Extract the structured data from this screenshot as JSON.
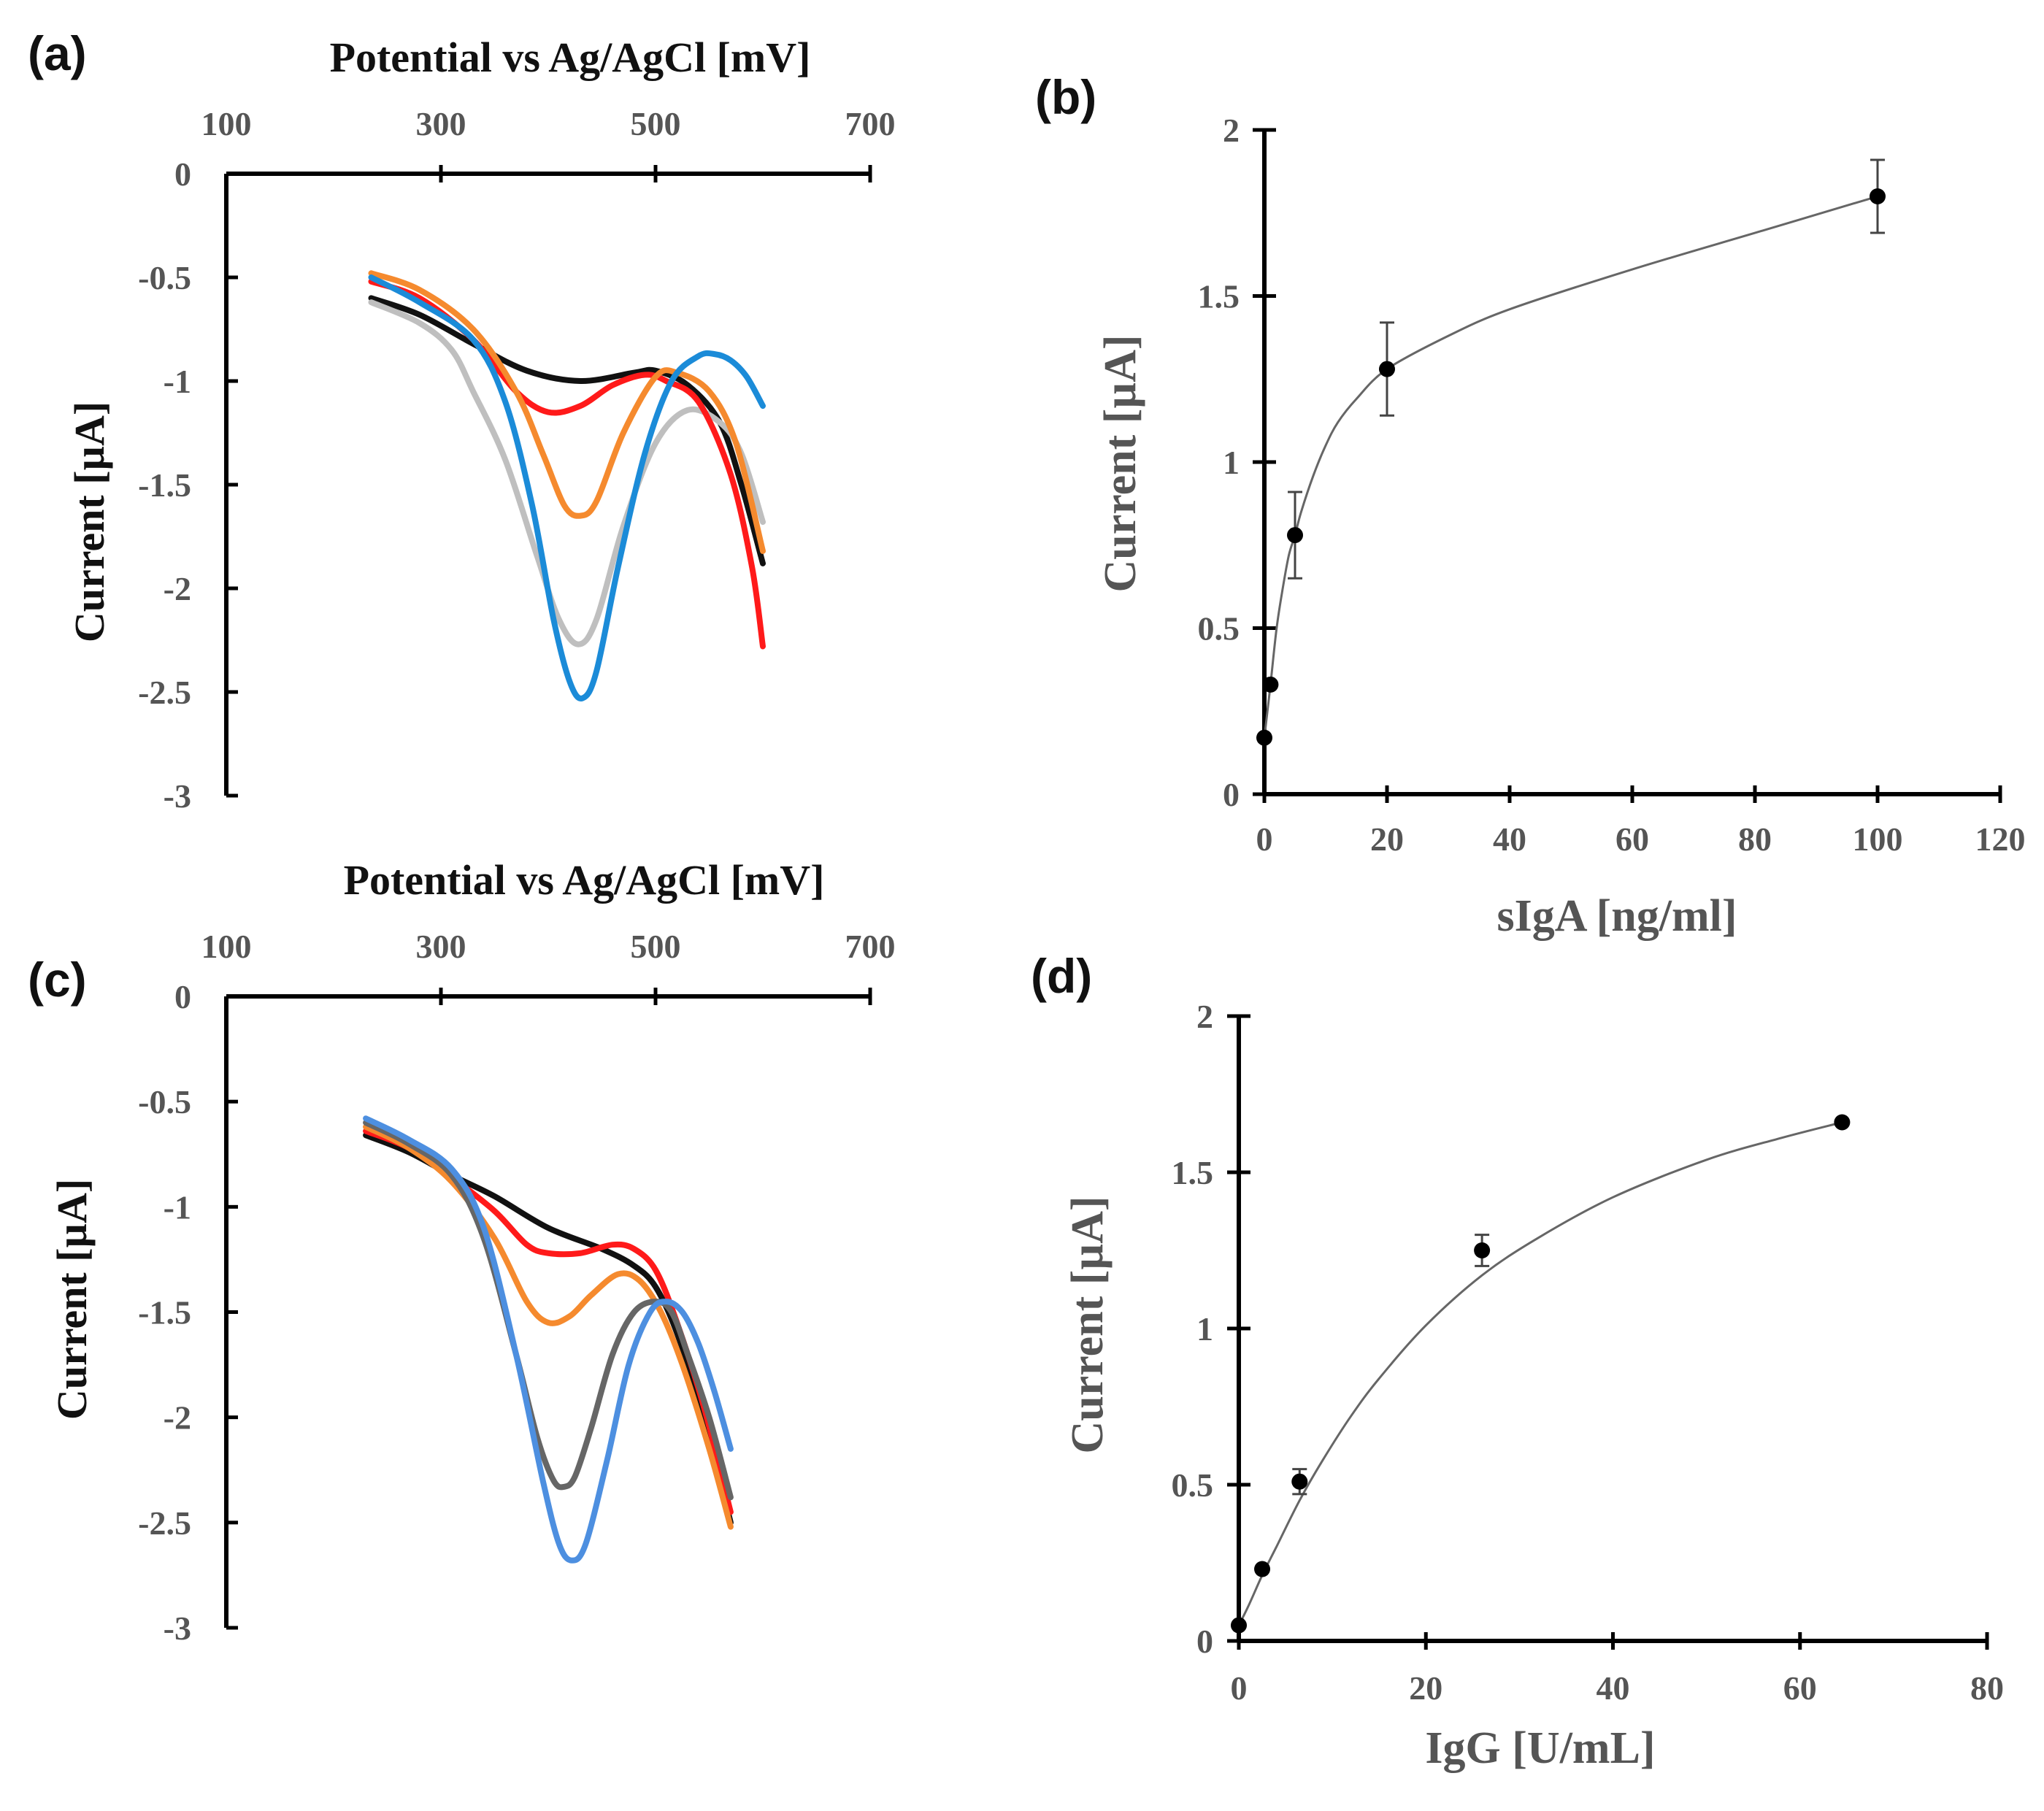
{
  "chart_data": [
    {
      "panel": "(a)",
      "type": "line",
      "title": "Potential vs Ag/AgCl [mV]",
      "xlabel": "Potential vs Ag/AgCl [mV]",
      "ylabel": "Current [µA]",
      "xlim": [
        100,
        700
      ],
      "ylim": [
        -3,
        0
      ],
      "x_ticks": [
        "100",
        "300",
        "500",
        "700"
      ],
      "y_ticks": [
        "0",
        "-0.5",
        "-1",
        "-1.5",
        "-2",
        "-2.5",
        "-3"
      ],
      "series": [
        {
          "name": "black",
          "color": "#111111",
          "x": [
            235,
            280,
            330,
            380,
            430,
            480,
            500,
            530,
            560,
            580,
            600
          ],
          "y": [
            -0.6,
            -0.68,
            -0.82,
            -0.95,
            -1.0,
            -0.96,
            -0.95,
            -1.02,
            -1.2,
            -1.5,
            -1.88
          ]
        },
        {
          "name": "gray",
          "color": "#bfbfbf",
          "x": [
            235,
            280,
            310,
            330,
            360,
            390,
            410,
            428,
            445,
            470,
            500,
            530,
            560,
            580,
            600
          ],
          "y": [
            -0.62,
            -0.72,
            -0.85,
            -1.05,
            -1.38,
            -1.85,
            -2.15,
            -2.27,
            -2.15,
            -1.7,
            -1.3,
            -1.14,
            -1.2,
            -1.35,
            -1.68
          ]
        },
        {
          "name": "red",
          "color": "#ff1a1a",
          "x": [
            235,
            280,
            330,
            370,
            400,
            430,
            460,
            490,
            510,
            540,
            570,
            590,
            600
          ],
          "y": [
            -0.52,
            -0.6,
            -0.8,
            -1.05,
            -1.15,
            -1.12,
            -1.02,
            -0.97,
            -1.0,
            -1.1,
            -1.45,
            -1.9,
            -2.28
          ]
        },
        {
          "name": "orange",
          "color": "#f58a2e",
          "x": [
            235,
            280,
            330,
            370,
            395,
            415,
            430,
            445,
            470,
            500,
            520,
            550,
            575,
            600
          ],
          "y": [
            -0.48,
            -0.56,
            -0.75,
            -1.05,
            -1.35,
            -1.6,
            -1.65,
            -1.58,
            -1.25,
            -0.98,
            -0.96,
            -1.05,
            -1.3,
            -1.82
          ]
        },
        {
          "name": "blue",
          "color": "#1b8bd8",
          "x": [
            235,
            280,
            330,
            360,
            385,
            405,
            420,
            432,
            445,
            465,
            490,
            515,
            540,
            555,
            570,
            585,
            600
          ],
          "y": [
            -0.5,
            -0.62,
            -0.8,
            -1.1,
            -1.6,
            -2.15,
            -2.45,
            -2.53,
            -2.4,
            -1.9,
            -1.35,
            -1.0,
            -0.88,
            -0.87,
            -0.9,
            -0.98,
            -1.12
          ]
        }
      ]
    },
    {
      "panel": "(b)",
      "type": "scatter",
      "xlabel": "sIgA [ng/ml]",
      "ylabel": "Current [µA]",
      "xlim": [
        0,
        120
      ],
      "ylim": [
        0,
        2
      ],
      "x_ticks": [
        "0",
        "20",
        "40",
        "60",
        "80",
        "100",
        "120"
      ],
      "y_ticks": [
        "0",
        "0.5",
        "1",
        "1.5",
        "2"
      ],
      "points": [
        {
          "x": 0,
          "y": 0.17,
          "err": 0
        },
        {
          "x": 1,
          "y": 0.33,
          "err": 0
        },
        {
          "x": 5,
          "y": 0.78,
          "err": 0.13
        },
        {
          "x": 20,
          "y": 1.28,
          "err": 0.14
        },
        {
          "x": 100,
          "y": 1.8,
          "err": 0.11
        }
      ],
      "fit": {
        "x": [
          0,
          0.5,
          1,
          2,
          3,
          4,
          5,
          6,
          8,
          10,
          12,
          15,
          20,
          30,
          40,
          60,
          80,
          100
        ],
        "y": [
          0.17,
          0.25,
          0.33,
          0.5,
          0.62,
          0.72,
          0.78,
          0.85,
          0.96,
          1.05,
          1.12,
          1.19,
          1.28,
          1.38,
          1.46,
          1.58,
          1.69,
          1.8
        ]
      }
    },
    {
      "panel": "(c)",
      "type": "line",
      "title": "Potential vs Ag/AgCl [mV]",
      "xlabel": "Potential vs Ag/AgCl [mV]",
      "ylabel": "Current [µA]",
      "xlim": [
        100,
        700
      ],
      "ylim": [
        -3,
        0
      ],
      "x_ticks": [
        "100",
        "300",
        "500",
        "700"
      ],
      "y_ticks": [
        "0",
        "-0.5",
        "-1",
        "-1.5",
        "-2",
        "-2.5",
        "-3"
      ],
      "series": [
        {
          "name": "black",
          "color": "#111111",
          "x": [
            230,
            270,
            310,
            350,
            400,
            450,
            480,
            500,
            520,
            545,
            570
          ],
          "y": [
            -0.66,
            -0.74,
            -0.85,
            -0.95,
            -1.1,
            -1.2,
            -1.28,
            -1.38,
            -1.6,
            -2.0,
            -2.5
          ]
        },
        {
          "name": "red",
          "color": "#ff1a1a",
          "x": [
            230,
            270,
            310,
            350,
            380,
            400,
            430,
            460,
            480,
            500,
            520,
            545,
            570
          ],
          "y": [
            -0.64,
            -0.72,
            -0.86,
            -1.02,
            -1.18,
            -1.22,
            -1.22,
            -1.18,
            -1.2,
            -1.3,
            -1.55,
            -1.95,
            -2.45
          ]
        },
        {
          "name": "orange",
          "color": "#f58a2e",
          "x": [
            230,
            270,
            310,
            350,
            380,
            400,
            420,
            440,
            465,
            485,
            505,
            525,
            550,
            570
          ],
          "y": [
            -0.62,
            -0.72,
            -0.88,
            -1.15,
            -1.45,
            -1.55,
            -1.52,
            -1.42,
            -1.32,
            -1.35,
            -1.5,
            -1.75,
            -2.15,
            -2.52
          ]
        },
        {
          "name": "dark-gray",
          "color": "#666666",
          "x": [
            230,
            270,
            310,
            340,
            370,
            390,
            405,
            415,
            425,
            440,
            460,
            480,
            500,
            515,
            530,
            550,
            570
          ],
          "y": [
            -0.6,
            -0.7,
            -0.85,
            -1.15,
            -1.7,
            -2.1,
            -2.3,
            -2.33,
            -2.28,
            -2.05,
            -1.7,
            -1.5,
            -1.45,
            -1.5,
            -1.7,
            -2.0,
            -2.38
          ]
        },
        {
          "name": "light-blue",
          "color": "#4d8fe0",
          "x": [
            230,
            270,
            310,
            340,
            370,
            395,
            410,
            422,
            435,
            455,
            475,
            495,
            510,
            525,
            540,
            555,
            570
          ],
          "y": [
            -0.58,
            -0.68,
            -0.82,
            -1.1,
            -1.7,
            -2.3,
            -2.6,
            -2.68,
            -2.6,
            -2.2,
            -1.75,
            -1.5,
            -1.45,
            -1.5,
            -1.65,
            -1.88,
            -2.15
          ]
        }
      ]
    },
    {
      "panel": "(d)",
      "type": "scatter",
      "xlabel": "IgG [U/mL]",
      "ylabel": "Current [µA]",
      "xlim": [
        0,
        80
      ],
      "ylim": [
        0,
        2
      ],
      "x_ticks": [
        "0",
        "20",
        "40",
        "60",
        "80"
      ],
      "y_ticks": [
        "0",
        "0.5",
        "1",
        "1.5",
        "2"
      ],
      "points": [
        {
          "x": 0,
          "y": 0.05,
          "err": 0
        },
        {
          "x": 2.5,
          "y": 0.23,
          "err": 0
        },
        {
          "x": 6.5,
          "y": 0.51,
          "err": 0.04
        },
        {
          "x": 26,
          "y": 1.25,
          "err": 0.05
        },
        {
          "x": 64.5,
          "y": 1.66,
          "err": 0
        }
      ],
      "fit": {
        "x": [
          0,
          1,
          2.5,
          4,
          6.5,
          9,
          12,
          15,
          20,
          26,
          32,
          40,
          50,
          58,
          64.5
        ],
        "y": [
          0.05,
          0.11,
          0.21,
          0.3,
          0.45,
          0.58,
          0.72,
          0.84,
          1.01,
          1.17,
          1.29,
          1.42,
          1.54,
          1.61,
          1.66
        ]
      }
    }
  ]
}
